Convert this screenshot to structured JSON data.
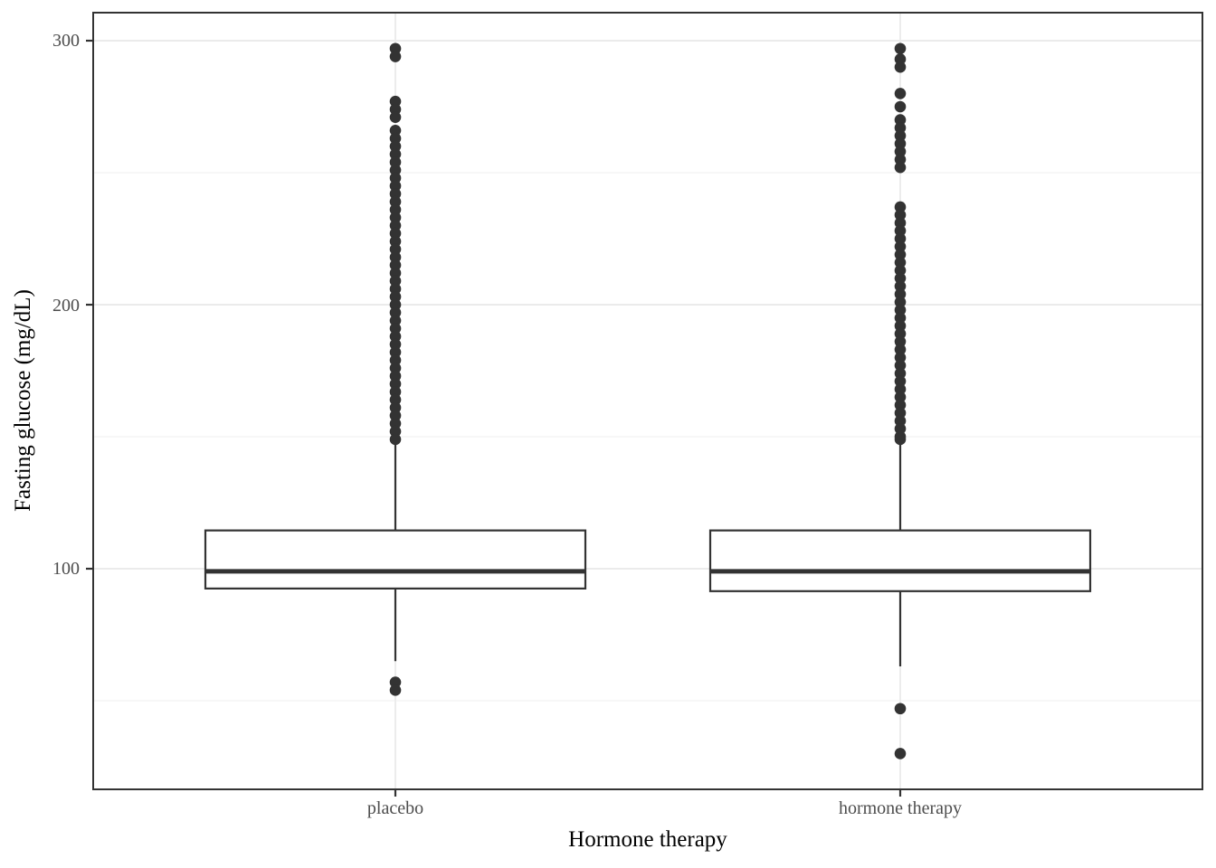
{
  "chart_data": {
    "type": "boxplot",
    "title": "",
    "xlabel": "Hormone therapy",
    "ylabel": "Fasting glucose (mg/dL)",
    "categories": [
      "placebo",
      "hormone therapy"
    ],
    "ylim": [
      16,
      311
    ],
    "y_axis": {
      "tick_labels": [
        "300",
        "200",
        "100"
      ],
      "major_ticks": [
        300,
        200,
        100
      ],
      "minor_gridlines": [
        250,
        150,
        50
      ]
    },
    "legend": "none",
    "grid": "horizontal major+minor gridlines, vertical major gridline at each category",
    "groups": [
      {
        "label": "placebo",
        "median": 99,
        "q1": 92.5,
        "q3": 114.5,
        "whisker_low": 65,
        "whisker_high": 148,
        "outliers_low": [
          57,
          54
        ],
        "outliers_high": [
          297,
          294,
          277,
          274,
          271,
          266,
          263,
          260,
          257,
          254,
          251,
          248,
          245,
          242,
          239,
          236,
          233,
          230,
          227,
          224,
          221,
          218,
          215,
          212,
          209,
          206,
          203,
          200,
          197,
          194,
          191,
          188,
          185,
          182,
          179,
          176,
          173,
          170,
          167,
          164,
          161,
          158,
          155,
          152,
          149
        ]
      },
      {
        "label": "hormone therapy",
        "median": 99,
        "q1": 91.5,
        "q3": 114.5,
        "whisker_low": 63,
        "whisker_high": 148,
        "outliers_low": [
          47,
          30
        ],
        "outliers_high": [
          297,
          293,
          290,
          280,
          275,
          270,
          267,
          264,
          261,
          258,
          255,
          252,
          237,
          234,
          231,
          228,
          225,
          222,
          219,
          216,
          213,
          210,
          207,
          204,
          201,
          198,
          195,
          192,
          189,
          186,
          183,
          180,
          177,
          174,
          171,
          168,
          165,
          162,
          159,
          156,
          153,
          150,
          149
        ]
      }
    ],
    "style": {
      "background": "#ffffff",
      "panel_border": "#333333",
      "stroke": "#333333",
      "box_fill": "#ffffff",
      "dot_color": "#333333",
      "grid_major": "#ebebeb",
      "grid_minor": "#f2f2f2",
      "tick_label_color": "#4d4d4d",
      "axis_title_color": "#000000"
    }
  }
}
